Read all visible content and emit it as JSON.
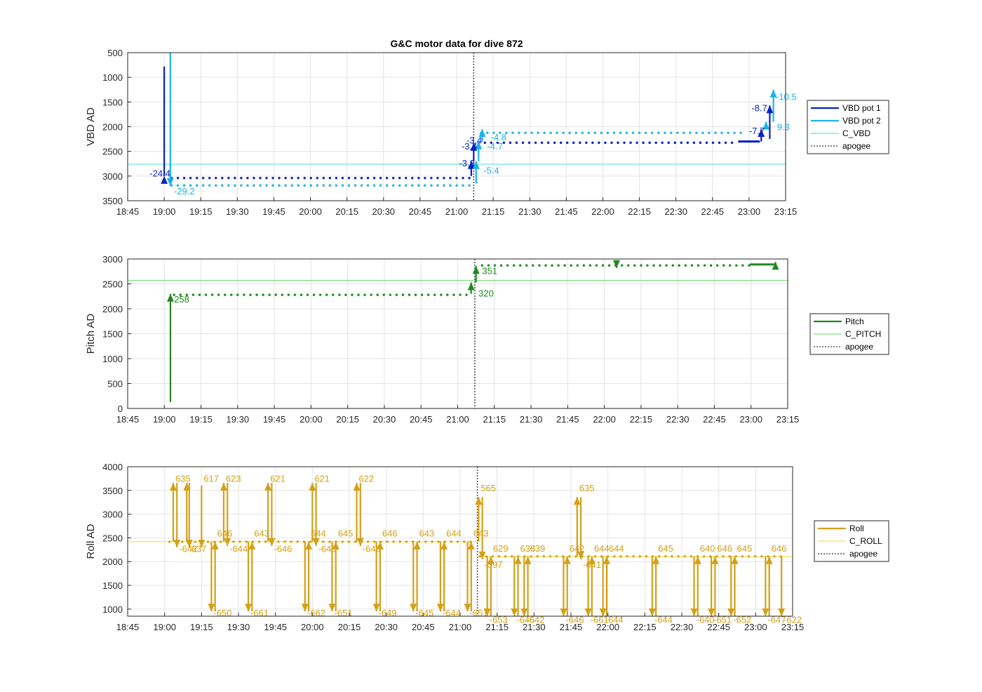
{
  "title": "G&C motor data for dive 872",
  "colors": {
    "vbd1": "#0a1fc4",
    "vbd2": "#17b5e6",
    "cvbd": "#5ee0e0",
    "pitch": "#1f8a1f",
    "cpitch": "#7fe07f",
    "roll": "#d4a017",
    "croll": "#f5e570",
    "apogee": "#555555"
  },
  "chart_data": [
    {
      "type": "scatter",
      "ylabel": "VBD AD",
      "x_ticks": [
        "18:45",
        "19:00",
        "19:15",
        "19:30",
        "19:45",
        "20:00",
        "20:15",
        "20:30",
        "20:45",
        "21:00",
        "21:15",
        "21:30",
        "21:45",
        "22:00",
        "22:15",
        "22:30",
        "22:45",
        "23:00",
        "23:15"
      ],
      "y_ticks": [
        "500",
        "1000",
        "1500",
        "2000",
        "2500",
        "3000",
        "3500"
      ],
      "xlim_min": [
        1125,
        1395
      ],
      "ylim": [
        500,
        3500
      ],
      "y_reversed": true,
      "grid": true,
      "legend_position": "right",
      "legend": [
        "VBD pot 1",
        "VBD pot 2",
        "C_VBD",
        "apogee"
      ],
      "reference_line": 2760,
      "apogee_min": 1267,
      "series": [
        {
          "name": "VBD pot 1",
          "color_key": "vbd1",
          "x_range": [
            1143,
            1267
          ],
          "y": 3040,
          "step": 2.6
        },
        {
          "name": "VBD pot 1",
          "color_key": "vbd1",
          "x_range": [
            1269,
            1375
          ],
          "y": 2325,
          "step": 2.6
        },
        {
          "name": "VBD pot 1",
          "color_key": "vbd1",
          "x_range": [
            1376,
            1384
          ],
          "y": 2300,
          "step": 0.8
        },
        {
          "name": "VBD pot 2",
          "color_key": "vbd2",
          "x_range": [
            1143,
            1267
          ],
          "y": 3190,
          "step": 2.6
        },
        {
          "name": "VBD pot 2",
          "color_key": "vbd2",
          "x_range": [
            1270,
            1378
          ],
          "y": 2125,
          "step": 2.6
        }
      ],
      "arrows": [
        {
          "x": 1140,
          "y0": 780,
          "y1": 3000,
          "color_key": "vbd1",
          "head": "up"
        },
        {
          "x": 1142.5,
          "y0": 500,
          "y1": 3200,
          "color_key": "vbd2",
          "head": "down"
        },
        {
          "x": 1266,
          "y0": 3000,
          "y1": 2700,
          "color_key": "vbd1",
          "head": "up"
        },
        {
          "x": 1267,
          "y0": 2700,
          "y1": 2330,
          "color_key": "vbd1",
          "head": "up"
        },
        {
          "x": 1268,
          "y0": 3150,
          "y1": 2700,
          "color_key": "vbd2",
          "head": "up"
        },
        {
          "x": 1269,
          "y0": 2700,
          "y1": 2300,
          "color_key": "vbd2",
          "head": "up"
        },
        {
          "x": 1270.5,
          "y0": 2300,
          "y1": 2050,
          "color_key": "vbd2",
          "head": "up"
        },
        {
          "x": 1385,
          "y0": 2300,
          "y1": 2050,
          "color_key": "vbd1",
          "head": "up"
        },
        {
          "x": 1387,
          "y0": 2050,
          "y1": 1900,
          "color_key": "vbd2",
          "head": "up"
        },
        {
          "x": 1388.5,
          "y0": 2250,
          "y1": 1570,
          "color_key": "vbd1",
          "head": "up"
        },
        {
          "x": 1390,
          "y0": 1900,
          "y1": 1250,
          "color_key": "vbd2",
          "head": "up"
        }
      ],
      "annotations": [
        {
          "text": "-24.4",
          "x": 1134,
          "y": 3010,
          "color_key": "vbd1"
        },
        {
          "text": "-29.2",
          "x": 1144,
          "y": 3370,
          "color_key": "vbd2"
        },
        {
          "text": "-3.3",
          "x": 1261,
          "y": 2800,
          "color_key": "vbd1"
        },
        {
          "text": "-3.4",
          "x": 1262,
          "y": 2460,
          "color_key": "vbd1"
        },
        {
          "text": "-3.4",
          "x": 1264,
          "y": 2340,
          "color_key": "vbd1"
        },
        {
          "text": "-5.4",
          "x": 1271,
          "y": 2950,
          "color_key": "vbd2"
        },
        {
          "text": "-4.7",
          "x": 1272.5,
          "y": 2460,
          "color_key": "vbd2"
        },
        {
          "text": "-4.8",
          "x": 1274,
          "y": 2280,
          "color_key": "vbd2"
        },
        {
          "text": "-7.7",
          "x": 1380,
          "y": 2150,
          "color_key": "vbd1"
        },
        {
          "text": "9.3",
          "x": 1391.5,
          "y": 2070,
          "color_key": "vbd2"
        },
        {
          "text": "-8.7",
          "x": 1381,
          "y": 1690,
          "color_key": "vbd1"
        },
        {
          "text": "-10.5",
          "x": 1391,
          "y": 1460,
          "color_key": "vbd2"
        }
      ]
    },
    {
      "type": "scatter",
      "ylabel": "Pitch AD",
      "x_ticks": [
        "18:45",
        "19:00",
        "19:15",
        "19:30",
        "19:45",
        "20:00",
        "20:15",
        "20:30",
        "20:45",
        "21:00",
        "21:15",
        "21:30",
        "21:45",
        "22:00",
        "22:15",
        "22:30",
        "22:45",
        "23:00",
        "23:15"
      ],
      "y_ticks": [
        "0",
        "500",
        "1000",
        "1500",
        "2000",
        "2500",
        "3000"
      ],
      "xlim_min": [
        1125,
        1395
      ],
      "ylim": [
        0,
        3000
      ],
      "grid": true,
      "legend_position": "right",
      "legend": [
        "Pitch",
        "C_PITCH",
        "apogee"
      ],
      "reference_line": 2570,
      "apogee_min": 1267,
      "series": [
        {
          "name": "Pitch",
          "color_key": "pitch",
          "x_range": [
            1144,
            1265
          ],
          "y": 2280,
          "step": 2.6
        },
        {
          "name": "Pitch",
          "color_key": "pitch",
          "x_range": [
            1270,
            1380
          ],
          "y": 2870,
          "step": 2.6
        },
        {
          "name": "Pitch",
          "color_key": "pitch",
          "x_range": [
            1380,
            1390
          ],
          "y": 2890,
          "step": 0.8
        }
      ],
      "arrows": [
        {
          "x": 1142.5,
          "y0": 130,
          "y1": 2300,
          "color_key": "pitch",
          "head": "up"
        },
        {
          "x": 1265.5,
          "y0": 2300,
          "y1": 2530,
          "color_key": "pitch",
          "head": "up"
        },
        {
          "x": 1267.5,
          "y0": 2530,
          "y1": 2860,
          "color_key": "pitch",
          "head": "up"
        },
        {
          "x": 1390,
          "y0": 2870,
          "y1": 2940,
          "color_key": "pitch",
          "head": "up"
        },
        {
          "x": 1325,
          "y0": 2880,
          "y1": 2820,
          "color_key": "pitch",
          "head": "down"
        }
      ],
      "annotations": [
        {
          "text": "258",
          "x": 1144,
          "y": 2130,
          "color_key": "pitch"
        },
        {
          "text": "320",
          "x": 1268.5,
          "y": 2250,
          "color_key": "pitch"
        },
        {
          "text": "351",
          "x": 1270,
          "y": 2700,
          "color_key": "pitch"
        }
      ]
    },
    {
      "type": "scatter",
      "ylabel": "Roll AD",
      "x_ticks": [
        "18:45",
        "19:00",
        "19:15",
        "19:30",
        "19:45",
        "20:00",
        "20:15",
        "20:30",
        "20:45",
        "21:00",
        "21:15",
        "21:30",
        "21:45",
        "22:00",
        "22:15",
        "22:30",
        "22:45",
        "23:00",
        "23:15"
      ],
      "y_ticks": [
        "1000",
        "1500",
        "2000",
        "2500",
        "3000",
        "3500",
        "4000"
      ],
      "xlim_min": [
        1125,
        1395
      ],
      "ylim": [
        850,
        4000
      ],
      "grid": true,
      "legend_position": "right",
      "legend": [
        "Roll",
        "C_ROLL",
        "apogee"
      ],
      "reference_line_1": {
        "x_range": [
          1125,
          1267
        ],
        "y": 2420
      },
      "reference_line_2": {
        "x_range": [
          1267,
          1395
        ],
        "y": 2110
      },
      "apogee_min": 1267,
      "series": [
        {
          "name": "Roll",
          "color_key": "roll",
          "x_range": [
            1142,
            1265
          ],
          "y": 2420,
          "step": 2.6
        },
        {
          "name": "Roll",
          "color_key": "roll",
          "x_range": [
            1268,
            1392
          ],
          "y": 2110,
          "step": 2.6
        }
      ],
      "swings": [
        {
          "x": 1143.5,
          "y0": 2420,
          "y1": 3660,
          "label": "635",
          "label_y": 3680
        },
        {
          "x": 1145,
          "y0": 3660,
          "y1": 2300,
          "label": "-642",
          "label_y": 2200
        },
        {
          "x": 1149,
          "y0": 2420,
          "y1": 3660,
          "label": "",
          "label_y": 0
        },
        {
          "x": 1150,
          "y0": 3660,
          "y1": 2300,
          "label": "637",
          "label_y": 2200
        },
        {
          "x": 1155,
          "y0": 3600,
          "y1": 2300,
          "label": "617",
          "label_y": 3680
        },
        {
          "x": 1159,
          "y0": 2420,
          "y1": 950,
          "label": "-650",
          "label_y": 850
        },
        {
          "x": 1160.5,
          "y0": 950,
          "y1": 2420,
          "label": "646",
          "label_y": 2530
        },
        {
          "x": 1164,
          "y0": 2420,
          "y1": 3660,
          "label": "623",
          "label_y": 3680
        },
        {
          "x": 1165.5,
          "y0": 3660,
          "y1": 2330,
          "label": "-644",
          "label_y": 2200
        },
        {
          "x": 1174,
          "y0": 2420,
          "y1": 950,
          "label": "-661",
          "label_y": 850
        },
        {
          "x": 1175.5,
          "y0": 950,
          "y1": 2420,
          "label": "643",
          "label_y": 2530
        },
        {
          "x": 1182,
          "y0": 2420,
          "y1": 3660,
          "label": "621",
          "label_y": 3680
        },
        {
          "x": 1183.5,
          "y0": 3660,
          "y1": 2330,
          "label": "-646",
          "label_y": 2200
        },
        {
          "x": 1197,
          "y0": 2420,
          "y1": 950,
          "label": "-662",
          "label_y": 850
        },
        {
          "x": 1198.5,
          "y0": 950,
          "y1": 2420,
          "label": "644",
          "label_y": 2530
        },
        {
          "x": 1200,
          "y0": 2420,
          "y1": 3660,
          "label": "621",
          "label_y": 3680
        },
        {
          "x": 1201.5,
          "y0": 3660,
          "y1": 2330,
          "label": "-643",
          "label_y": 2200
        },
        {
          "x": 1208,
          "y0": 2420,
          "y1": 950,
          "label": "-651",
          "label_y": 850
        },
        {
          "x": 1209.5,
          "y0": 950,
          "y1": 2420,
          "label": "645",
          "label_y": 2530
        },
        {
          "x": 1218,
          "y0": 2420,
          "y1": 3660,
          "label": "622",
          "label_y": 3680
        },
        {
          "x": 1219.5,
          "y0": 3660,
          "y1": 2330,
          "label": "-646",
          "label_y": 2200
        },
        {
          "x": 1226,
          "y0": 2420,
          "y1": 950,
          "label": "-649",
          "label_y": 850
        },
        {
          "x": 1227.5,
          "y0": 950,
          "y1": 2420,
          "label": "646",
          "label_y": 2530
        },
        {
          "x": 1241,
          "y0": 2420,
          "y1": 950,
          "label": "-645",
          "label_y": 850
        },
        {
          "x": 1242.5,
          "y0": 950,
          "y1": 2420,
          "label": "643",
          "label_y": 2530
        },
        {
          "x": 1252,
          "y0": 2420,
          "y1": 950,
          "label": "-644",
          "label_y": 850
        },
        {
          "x": 1253.5,
          "y0": 950,
          "y1": 2420,
          "label": "644",
          "label_y": 2530
        },
        {
          "x": 1263,
          "y0": 2420,
          "y1": 950,
          "label": "-651",
          "label_y": 850
        },
        {
          "x": 1264.5,
          "y0": 950,
          "y1": 2420,
          "label": "643",
          "label_y": 2530
        },
        {
          "x": 1267.5,
          "y0": 2420,
          "y1": 3360,
          "label": "565",
          "label_y": 3480
        },
        {
          "x": 1269,
          "y0": 3360,
          "y1": 2050,
          "label": "-597",
          "label_y": 1870
        },
        {
          "x": 1271,
          "y0": 2110,
          "y1": 850,
          "label": "-653",
          "label_y": 710
        },
        {
          "x": 1272.5,
          "y0": 850,
          "y1": 2110,
          "label": "629",
          "label_y": 2210
        },
        {
          "x": 1282,
          "y0": 2110,
          "y1": 850,
          "label": "-646",
          "label_y": 710
        },
        {
          "x": 1283.5,
          "y0": 850,
          "y1": 2110,
          "label": "638",
          "label_y": 2210
        },
        {
          "x": 1286,
          "y0": 2110,
          "y1": 850,
          "label": "-642",
          "label_y": 710
        },
        {
          "x": 1287.5,
          "y0": 850,
          "y1": 2110,
          "label": "639",
          "label_y": 2210
        },
        {
          "x": 1302,
          "y0": 2110,
          "y1": 850,
          "label": "-646",
          "label_y": 710
        },
        {
          "x": 1303.5,
          "y0": 850,
          "y1": 2110,
          "label": "642",
          "label_y": 2210
        },
        {
          "x": 1307.5,
          "y0": 2110,
          "y1": 3360,
          "label": "635",
          "label_y": 3480
        },
        {
          "x": 1309,
          "y0": 3360,
          "y1": 2050,
          "label": "-641",
          "label_y": 1870
        },
        {
          "x": 1312,
          "y0": 2110,
          "y1": 850,
          "label": "-661",
          "label_y": 710
        },
        {
          "x": 1313.5,
          "y0": 850,
          "y1": 2110,
          "label": "644",
          "label_y": 2210
        },
        {
          "x": 1318,
          "y0": 2110,
          "y1": 850,
          "label": "-644",
          "label_y": 710
        },
        {
          "x": 1319.5,
          "y0": 850,
          "y1": 2110,
          "label": "644",
          "label_y": 2210
        },
        {
          "x": 1338,
          "y0": 2110,
          "y1": 850,
          "label": "-644",
          "label_y": 710
        },
        {
          "x": 1339.5,
          "y0": 850,
          "y1": 2110,
          "label": "645",
          "label_y": 2210
        },
        {
          "x": 1355,
          "y0": 2110,
          "y1": 850,
          "label": "-640",
          "label_y": 710
        },
        {
          "x": 1356.5,
          "y0": 850,
          "y1": 2110,
          "label": "640",
          "label_y": 2210
        },
        {
          "x": 1362,
          "y0": 2110,
          "y1": 850,
          "label": "-651",
          "label_y": 710
        },
        {
          "x": 1363.5,
          "y0": 850,
          "y1": 2110,
          "label": "646",
          "label_y": 2210
        },
        {
          "x": 1370,
          "y0": 2110,
          "y1": 850,
          "label": "-652",
          "label_y": 710
        },
        {
          "x": 1371.5,
          "y0": 850,
          "y1": 2110,
          "label": "645",
          "label_y": 2210
        },
        {
          "x": 1384,
          "y0": 2110,
          "y1": 850,
          "label": "-647",
          "label_y": 710
        },
        {
          "x": 1385.5,
          "y0": 850,
          "y1": 2110,
          "label": "646",
          "label_y": 2210
        },
        {
          "x": 1390.5,
          "y0": 2110,
          "y1": 850,
          "label": "-622",
          "label_y": 710
        }
      ]
    }
  ]
}
